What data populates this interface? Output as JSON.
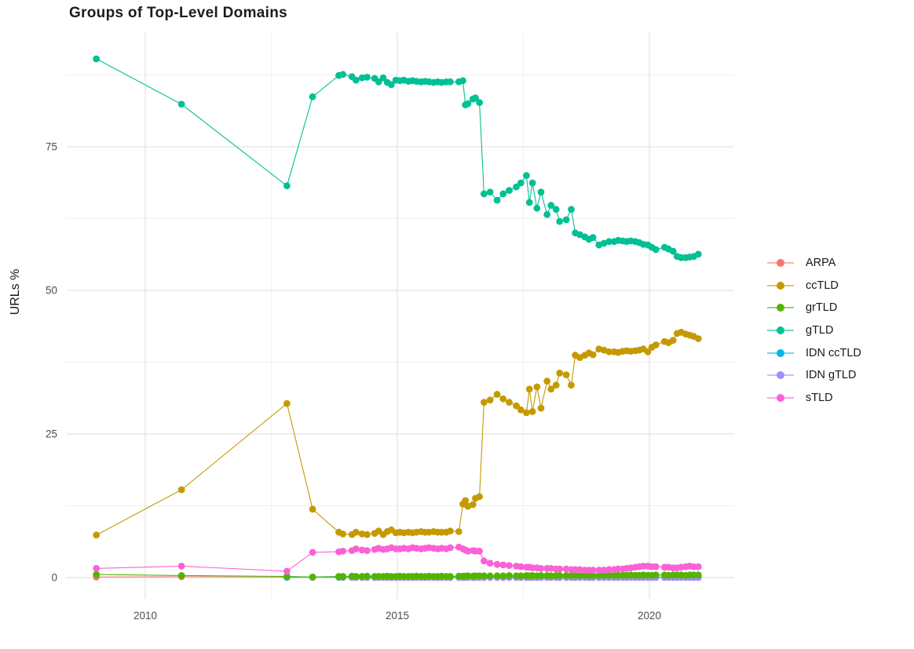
{
  "chart_data": {
    "type": "line",
    "title": "Groups of Top-Level Domains",
    "xlabel": "",
    "ylabel": "URLs %",
    "xlim": [
      2008.44,
      2021.68
    ],
    "ylim": [
      -3.7,
      94.8
    ],
    "grid": true,
    "legend_position": "right",
    "x_axis": {
      "major_ticks": [
        {
          "value": 2010,
          "label": "2010"
        },
        {
          "value": 2015,
          "label": "2015"
        },
        {
          "value": 2020,
          "label": "2020"
        }
      ],
      "minor_ticks": [
        2012.5,
        2017.5
      ]
    },
    "y_axis": {
      "major_ticks": [
        {
          "value": 0,
          "label": "0"
        },
        {
          "value": 25,
          "label": "25"
        },
        {
          "value": 50,
          "label": "50"
        },
        {
          "value": 75,
          "label": "75"
        }
      ],
      "minor_ticks": [
        12.5,
        37.5,
        62.5,
        87.5
      ]
    },
    "x": [
      2009.03,
      2010.72,
      2012.81,
      2013.32,
      2013.84,
      2013.92,
      2014.1,
      2014.18,
      2014.3,
      2014.4,
      2014.55,
      2014.63,
      2014.72,
      2014.8,
      2014.88,
      2014.97,
      2015.05,
      2015.13,
      2015.22,
      2015.3,
      2015.38,
      2015.47,
      2015.55,
      2015.63,
      2015.72,
      2015.8,
      2015.88,
      2015.97,
      2016.05,
      2016.22,
      2016.3,
      2016.35,
      2016.4,
      2016.5,
      2016.55,
      2016.63,
      2016.72,
      2016.84,
      2016.98,
      2017.1,
      2017.22,
      2017.36,
      2017.45,
      2017.56,
      2017.62,
      2017.68,
      2017.77,
      2017.85,
      2017.97,
      2018.05,
      2018.15,
      2018.22,
      2018.35,
      2018.45,
      2018.53,
      2018.62,
      2018.72,
      2018.8,
      2018.88,
      2019.0,
      2019.1,
      2019.2,
      2019.3,
      2019.38,
      2019.47,
      2019.55,
      2019.63,
      2019.72,
      2019.8,
      2019.88,
      2019.97,
      2020.05,
      2020.13,
      2020.3,
      2020.38,
      2020.47,
      2020.55,
      2020.63,
      2020.72,
      2020.8,
      2020.88,
      2020.97
    ],
    "series": [
      {
        "name": "ARPA",
        "color": "#F8766D",
        "y": [
          0.1,
          0.15,
          0.07,
          0.06,
          0.04,
          0.04,
          0.04,
          0.04,
          0.04,
          0.04,
          0.04,
          0.04,
          0.04,
          0.04,
          0.04,
          0.04,
          0.04,
          0.04,
          0.04,
          0.04,
          0.04,
          0.04,
          0.04,
          0.04,
          0.04,
          0.04,
          0.04,
          0.04,
          0.04,
          0.04,
          0.04,
          0.04,
          0.04,
          0.04,
          0.04,
          0.04,
          0.04,
          0.04,
          0.04,
          0.04,
          0.04,
          0.04,
          0.04,
          0.04,
          0.04,
          0.04,
          0.04,
          0.04,
          0.04,
          0.04,
          0.04,
          0.04,
          0.04,
          0.04,
          0.04,
          0.04,
          0.04,
          0.04,
          0.04,
          0.04,
          0.04,
          0.04,
          0.04,
          0.04,
          0.04,
          0.04,
          0.04,
          0.04,
          0.04,
          0.04,
          0.04,
          0.04,
          0.04,
          0.04,
          0.04,
          0.04,
          0.04,
          0.04,
          0.04,
          0.04,
          0.04,
          0.04
        ]
      },
      {
        "name": "ccTLD",
        "color": "#C49A00",
        "y": [
          7.4,
          15.3,
          30.3,
          11.9,
          7.9,
          7.6,
          7.5,
          7.9,
          7.6,
          7.5,
          7.7,
          8.1,
          7.5,
          8.0,
          8.3,
          7.8,
          7.9,
          7.8,
          7.9,
          7.8,
          7.9,
          8.0,
          7.9,
          7.9,
          8.0,
          7.9,
          7.9,
          7.9,
          8.1,
          8.0,
          12.8,
          13.4,
          12.4,
          12.7,
          13.8,
          14.1,
          30.5,
          30.9,
          31.9,
          31.1,
          30.5,
          29.9,
          29.2,
          28.7,
          32.8,
          28.9,
          33.2,
          29.5,
          34.2,
          32.8,
          33.5,
          35.6,
          35.3,
          33.5,
          38.7,
          38.3,
          38.7,
          39.1,
          38.8,
          39.8,
          39.6,
          39.3,
          39.3,
          39.2,
          39.4,
          39.5,
          39.4,
          39.5,
          39.6,
          39.8,
          39.3,
          40.1,
          40.5,
          41.1,
          40.9,
          41.3,
          42.5,
          42.7,
          42.4,
          42.2,
          42.0,
          41.6
        ]
      },
      {
        "name": "grTLD",
        "color": "#53B400",
        "y": [
          0.55,
          0.35,
          0.2,
          0.1,
          0.2,
          0.2,
          0.25,
          0.2,
          0.2,
          0.25,
          0.2,
          0.2,
          0.2,
          0.25,
          0.2,
          0.2,
          0.25,
          0.2,
          0.2,
          0.2,
          0.25,
          0.2,
          0.2,
          0.25,
          0.2,
          0.2,
          0.25,
          0.2,
          0.2,
          0.25,
          0.25,
          0.25,
          0.3,
          0.25,
          0.3,
          0.3,
          0.3,
          0.3,
          0.3,
          0.3,
          0.35,
          0.3,
          0.3,
          0.35,
          0.3,
          0.35,
          0.3,
          0.35,
          0.35,
          0.3,
          0.35,
          0.35,
          0.35,
          0.35,
          0.4,
          0.35,
          0.4,
          0.4,
          0.35,
          0.4,
          0.4,
          0.4,
          0.4,
          0.4,
          0.4,
          0.4,
          0.45,
          0.4,
          0.4,
          0.45,
          0.4,
          0.4,
          0.45,
          0.45,
          0.4,
          0.45,
          0.45,
          0.45,
          0.4,
          0.45,
          0.45,
          0.45
        ]
      },
      {
        "name": "gTLD",
        "color": "#00C094",
        "y": [
          90.3,
          82.4,
          68.2,
          83.7,
          87.4,
          87.6,
          87.2,
          86.6,
          87.0,
          87.1,
          86.9,
          86.3,
          87.0,
          86.2,
          85.8,
          86.6,
          86.5,
          86.6,
          86.4,
          86.5,
          86.4,
          86.3,
          86.4,
          86.3,
          86.2,
          86.3,
          86.2,
          86.3,
          86.3,
          86.3,
          86.5,
          82.3,
          82.5,
          83.3,
          83.5,
          82.7,
          66.8,
          67.1,
          65.7,
          66.8,
          67.4,
          68.0,
          68.7,
          70.0,
          65.3,
          68.7,
          64.3,
          67.1,
          63.2,
          64.8,
          64.1,
          62.0,
          62.3,
          64.1,
          60.0,
          59.7,
          59.3,
          58.9,
          59.2,
          57.9,
          58.2,
          58.5,
          58.5,
          58.7,
          58.6,
          58.5,
          58.6,
          58.5,
          58.3,
          58.0,
          57.9,
          57.5,
          57.1,
          57.5,
          57.2,
          56.8,
          55.9,
          55.7,
          55.7,
          55.8,
          55.9,
          56.3
        ]
      },
      {
        "name": "IDN ccTLD",
        "color": "#00B6EB",
        "y": [
          null,
          null,
          0.05,
          0.07,
          0.08,
          0.08,
          0.08,
          0.08,
          0.08,
          0.08,
          0.08,
          0.08,
          0.08,
          0.08,
          0.08,
          0.08,
          0.08,
          0.08,
          0.08,
          0.08,
          0.08,
          0.08,
          0.08,
          0.08,
          0.08,
          0.08,
          0.08,
          0.08,
          0.08,
          0.08,
          0.08,
          0.08,
          0.08,
          0.08,
          0.08,
          0.08,
          0.08,
          0.08,
          0.08,
          0.08,
          0.08,
          0.08,
          0.08,
          0.08,
          0.08,
          0.08,
          0.08,
          0.08,
          0.08,
          0.08,
          0.08,
          0.08,
          0.08,
          0.08,
          0.08,
          0.08,
          0.08,
          0.08,
          0.08,
          0.08,
          0.08,
          0.08,
          0.08,
          0.08,
          0.08,
          0.08,
          0.08,
          0.08,
          0.08,
          0.08,
          0.08,
          0.08,
          0.08,
          0.08,
          0.08,
          0.08,
          0.08,
          0.08,
          0.08,
          0.08,
          0.08,
          0.08
        ]
      },
      {
        "name": "IDN gTLD",
        "color": "#A58AFF",
        "y": [
          null,
          null,
          null,
          null,
          null,
          null,
          0.02,
          0.02,
          0.02,
          0.02,
          0.02,
          0.02,
          0.02,
          0.02,
          0.02,
          0.02,
          0.02,
          0.02,
          0.02,
          0.02,
          0.02,
          0.02,
          0.02,
          0.02,
          0.02,
          0.02,
          0.02,
          0.02,
          0.02,
          0.02,
          0.02,
          0.02,
          0.02,
          0.02,
          0.02,
          0.02,
          0.02,
          0.02,
          0.02,
          0.02,
          0.02,
          0.02,
          0.02,
          0.02,
          0.02,
          0.02,
          0.02,
          0.02,
          0.02,
          0.02,
          0.02,
          0.02,
          0.02,
          0.02,
          0.02,
          0.02,
          0.02,
          0.02,
          0.02,
          0.02,
          0.02,
          0.02,
          0.02,
          0.02,
          0.02,
          0.02,
          0.02,
          0.02,
          0.02,
          0.02,
          0.02,
          0.02,
          0.02,
          0.02,
          0.02,
          0.02,
          0.02,
          0.02,
          0.02,
          0.02,
          0.02,
          0.02
        ]
      },
      {
        "name": "sTLD",
        "color": "#FB61D7",
        "y": [
          1.6,
          2.0,
          1.1,
          4.4,
          4.5,
          4.6,
          4.7,
          5.0,
          4.8,
          4.7,
          4.9,
          5.1,
          4.9,
          5.0,
          5.2,
          5.0,
          5.0,
          5.1,
          5.0,
          5.2,
          5.1,
          5.0,
          5.1,
          5.2,
          5.1,
          5.0,
          5.1,
          5.0,
          5.2,
          5.3,
          5.0,
          4.8,
          4.6,
          4.7,
          4.6,
          4.6,
          2.9,
          2.5,
          2.3,
          2.2,
          2.1,
          2.0,
          1.9,
          1.8,
          1.8,
          1.7,
          1.7,
          1.6,
          1.6,
          1.6,
          1.5,
          1.5,
          1.5,
          1.4,
          1.4,
          1.4,
          1.3,
          1.3,
          1.3,
          1.3,
          1.3,
          1.4,
          1.4,
          1.5,
          1.5,
          1.6,
          1.7,
          1.8,
          1.9,
          2.0,
          2.0,
          1.9,
          1.9,
          1.8,
          1.8,
          1.7,
          1.7,
          1.8,
          1.9,
          2.0,
          1.9,
          1.9
        ]
      }
    ]
  },
  "style": {
    "grid_major_color": "#e4e4e4",
    "grid_minor_color": "#f0f0f0",
    "tick_label_color": "#4d4d4d",
    "title_color": "#1c1c1c",
    "background": "#ffffff"
  }
}
